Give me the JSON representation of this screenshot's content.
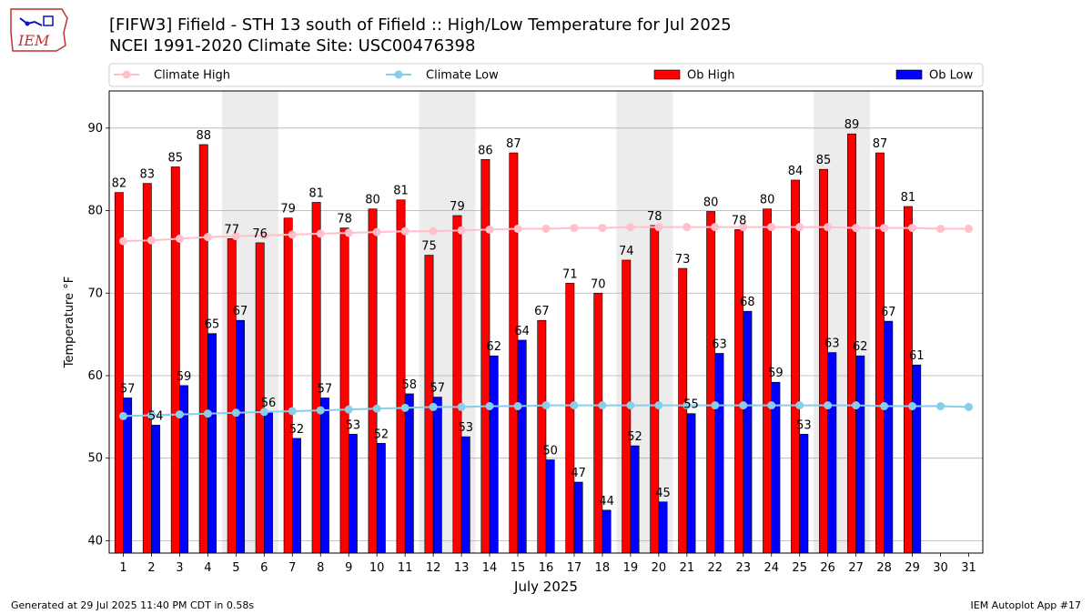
{
  "header": {
    "title_line1": "[FIFW3] Fifield - STH 13 south of Fifield :: High/Low Temperature for Jul 2025",
    "title_line2": "NCEI 1991-2020 Climate Site: USC00476398",
    "logo_text": "IEM"
  },
  "footer": {
    "generated": "Generated at 29 Jul 2025 11:40 PM CDT in 0.58s",
    "app": "IEM Autoplot App #17"
  },
  "colors": {
    "ob_high": "#ff0000",
    "ob_low": "#0000ff",
    "climate_high": "#ffc0cb",
    "climate_low": "#87ceeb",
    "weekend_shade": "#ececec",
    "grid": "#b0b0b0"
  },
  "chart_data": {
    "type": "bar",
    "xlabel": "July 2025",
    "ylabel": "Temperature $^\\circ$F",
    "ylim": [
      38.5,
      94.5
    ],
    "yticks": [
      40,
      50,
      60,
      70,
      80,
      90
    ],
    "grid": "horizontal",
    "legend_position": "top",
    "categories": [
      1,
      2,
      3,
      4,
      5,
      6,
      7,
      8,
      9,
      10,
      11,
      12,
      13,
      14,
      15,
      16,
      17,
      18,
      19,
      20,
      21,
      22,
      23,
      24,
      25,
      26,
      27,
      28,
      29,
      30,
      31
    ],
    "shaded_days": [
      [
        5,
        6
      ],
      [
        12,
        13
      ],
      [
        19,
        20
      ],
      [
        26,
        27
      ]
    ],
    "series": [
      {
        "name": "Ob High",
        "kind": "bar",
        "values": [
          82.2,
          83.3,
          85.3,
          88,
          76.6,
          76.1,
          79.1,
          81,
          77.9,
          80.2,
          81.3,
          74.6,
          79.4,
          86.2,
          87,
          66.7,
          71.2,
          70,
          74,
          78.2,
          73,
          79.9,
          77.7,
          80.2,
          83.7,
          85,
          89.3,
          87,
          80.5,
          null,
          null
        ],
        "labels": [
          82,
          83,
          85,
          88,
          77,
          76,
          79,
          81,
          78,
          80,
          81,
          75,
          79,
          86,
          87,
          67,
          71,
          70,
          74,
          78,
          73,
          80,
          78,
          80,
          84,
          85,
          89,
          87,
          81,
          null,
          null
        ]
      },
      {
        "name": "Ob Low",
        "kind": "bar",
        "values": [
          57.3,
          54,
          58.8,
          65.1,
          66.7,
          55.6,
          52.4,
          57.3,
          52.9,
          51.8,
          57.8,
          57.4,
          52.6,
          62.4,
          64.3,
          49.8,
          47.1,
          43.7,
          51.5,
          44.7,
          55.4,
          62.7,
          67.8,
          59.2,
          52.9,
          62.8,
          62.4,
          66.6,
          61.3,
          null,
          null
        ],
        "labels": [
          57,
          54,
          59,
          65,
          67,
          56,
          52,
          57,
          53,
          52,
          58,
          57,
          53,
          62,
          64,
          50,
          47,
          44,
          52,
          45,
          55,
          63,
          68,
          59,
          53,
          63,
          62,
          67,
          61,
          null,
          null
        ]
      },
      {
        "name": "Climate High",
        "kind": "line",
        "values": [
          76.3,
          76.4,
          76.6,
          76.8,
          76.9,
          77.0,
          77.1,
          77.2,
          77.3,
          77.4,
          77.5,
          77.5,
          77.6,
          77.7,
          77.8,
          77.8,
          77.9,
          77.9,
          78.0,
          78.0,
          78.0,
          78.0,
          78.0,
          78.0,
          78.0,
          78.0,
          77.9,
          77.9,
          77.9,
          77.8,
          77.8
        ]
      },
      {
        "name": "Climate Low",
        "kind": "line",
        "values": [
          55.1,
          55.2,
          55.3,
          55.4,
          55.5,
          55.6,
          55.7,
          55.8,
          55.9,
          56.0,
          56.1,
          56.2,
          56.2,
          56.3,
          56.3,
          56.4,
          56.4,
          56.4,
          56.4,
          56.4,
          56.4,
          56.4,
          56.4,
          56.4,
          56.4,
          56.4,
          56.4,
          56.3,
          56.3,
          56.3,
          56.2
        ]
      }
    ]
  }
}
